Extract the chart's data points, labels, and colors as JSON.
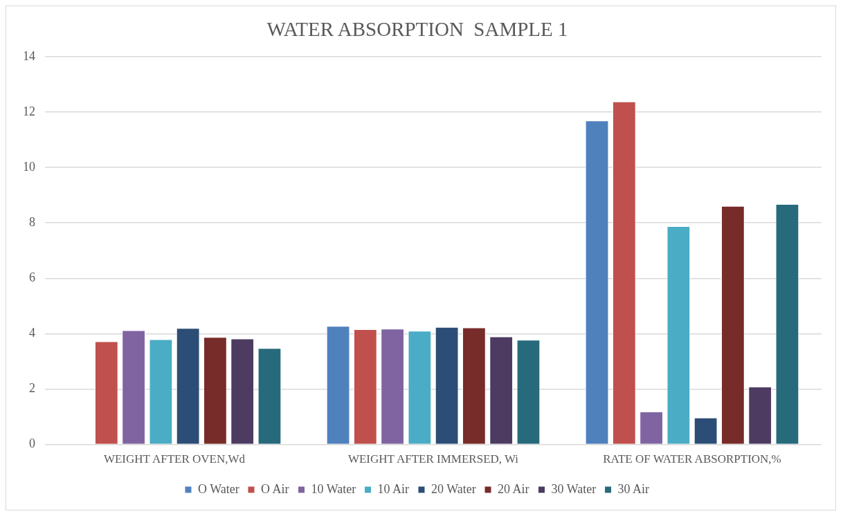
{
  "chart_data": {
    "type": "bar",
    "title": "WATER ABSORPTION  SAMPLE 1",
    "categories": [
      "WEIGHT AFTER OVEN,Wd",
      "WEIGHT AFTER IMMERSED, Wi",
      "RATE OF WATER ABSORPTION,%"
    ],
    "series": [
      {
        "name": "O Water",
        "color": "#4f81bd",
        "values": [
          null,
          4.28,
          11.69
        ]
      },
      {
        "name": "O Air",
        "color": "#c0504d",
        "values": [
          3.72,
          4.16,
          12.38
        ]
      },
      {
        "name": "10 Water",
        "color": "#8064a2",
        "values": [
          4.12,
          4.18,
          1.19
        ]
      },
      {
        "name": "10 Air",
        "color": "#4bacc6",
        "values": [
          3.8,
          4.1,
          7.88
        ]
      },
      {
        "name": "20 Water",
        "color": "#2c4d75",
        "values": [
          4.2,
          4.24,
          0.97
        ]
      },
      {
        "name": "20 Air",
        "color": "#772c2a",
        "values": [
          3.88,
          4.22,
          8.61
        ]
      },
      {
        "name": "30 Water",
        "color": "#4d3b62",
        "values": [
          3.82,
          3.9,
          2.09
        ]
      },
      {
        "name": "30 Air",
        "color": "#276a7c",
        "values": [
          3.48,
          3.78,
          8.68
        ]
      }
    ],
    "ylim": [
      0,
      14
    ],
    "yticks": [
      0,
      2,
      4,
      6,
      8,
      10,
      12,
      14
    ],
    "grid": "y",
    "legend": "bottom"
  }
}
